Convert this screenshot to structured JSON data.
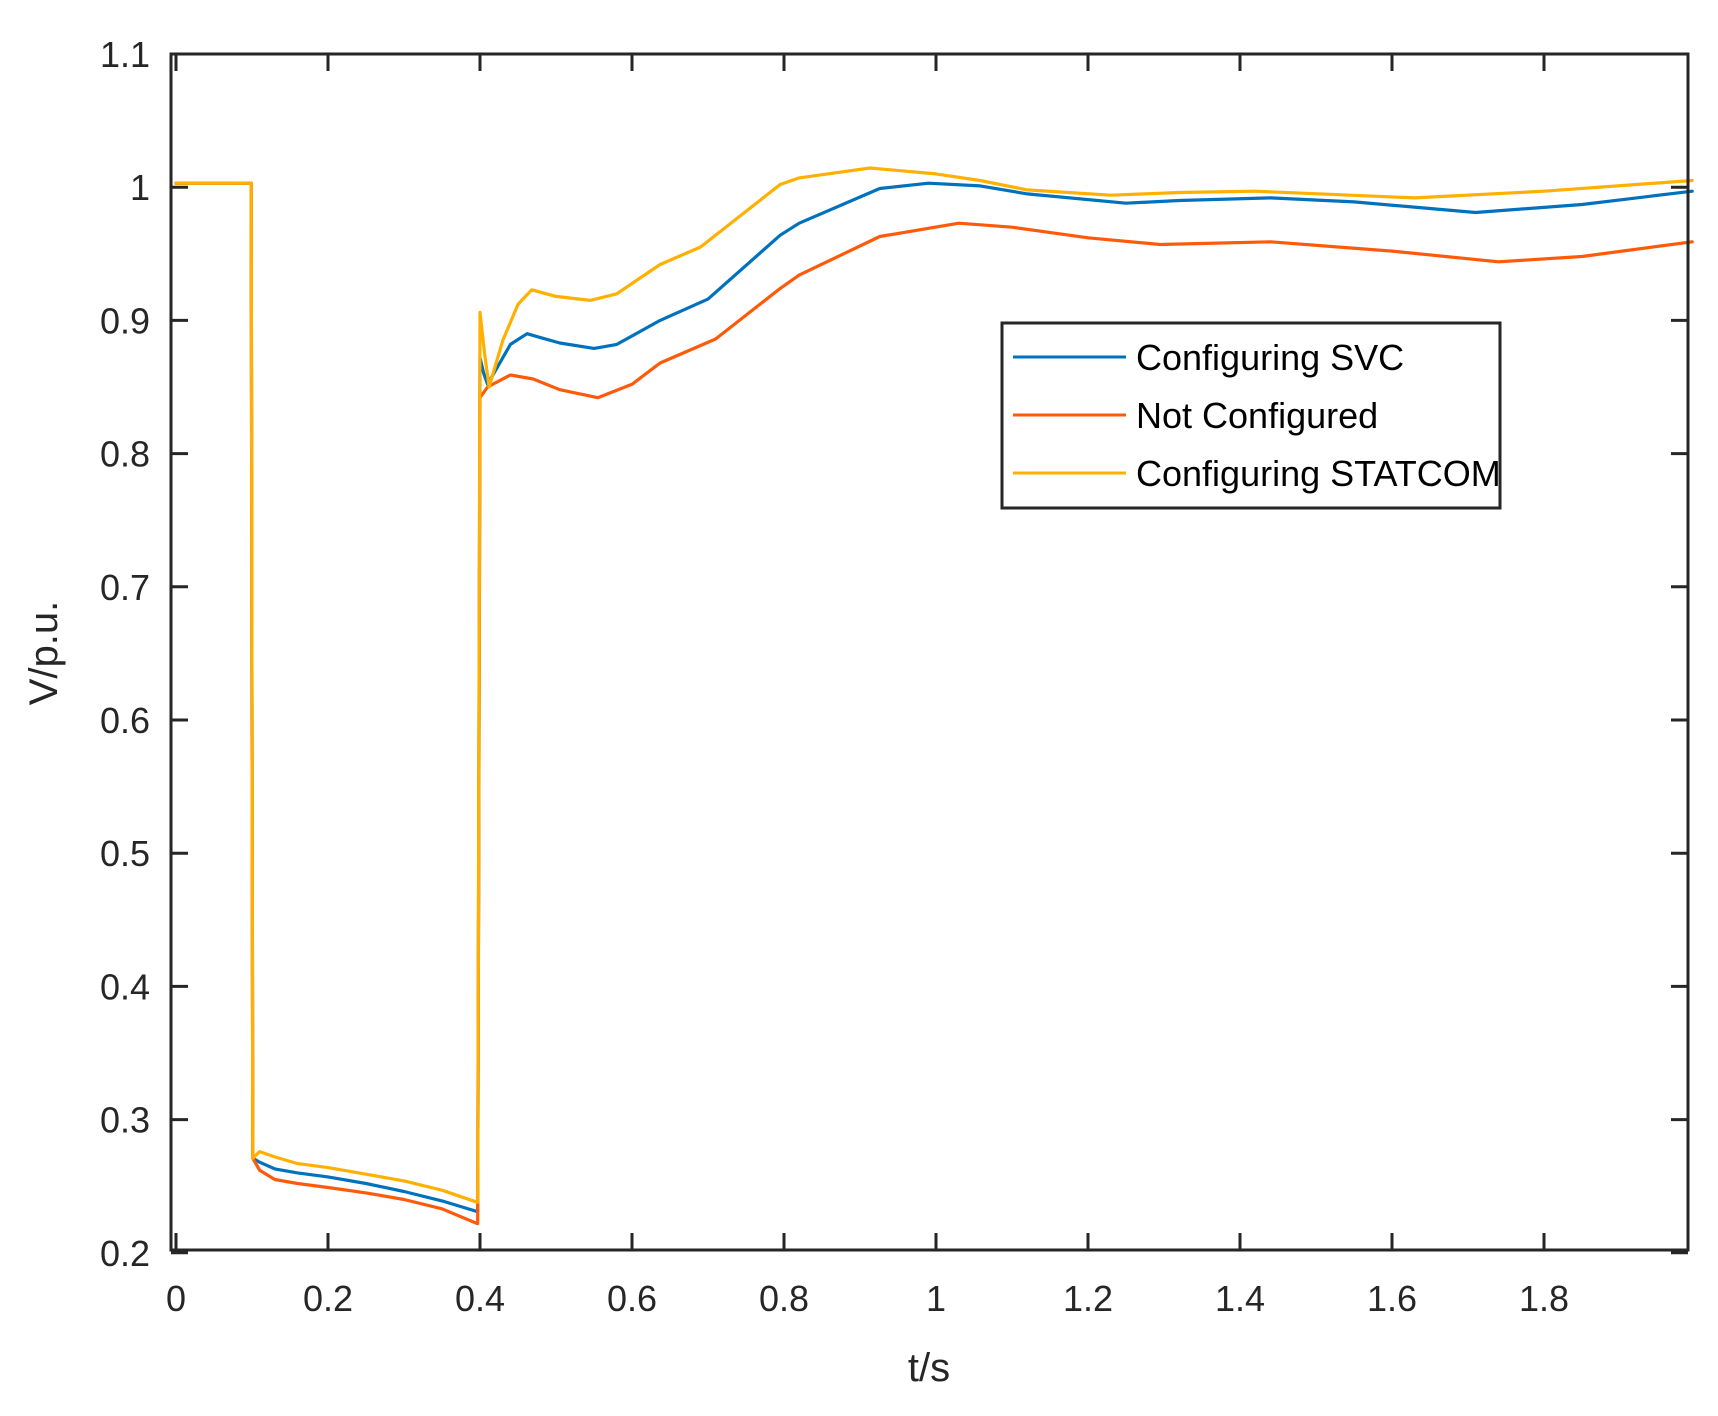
{
  "chart_data": {
    "type": "line",
    "title": "",
    "xlabel": "t/s",
    "ylabel": "V/p.u.",
    "xlim": [
      -0.006,
      1.995
    ],
    "ylim": [
      0.2,
      1.1
    ],
    "xticks": [
      0,
      0.2,
      0.4,
      0.6,
      0.8,
      1,
      1.2,
      1.4,
      1.6,
      1.8
    ],
    "xtick_labels": [
      "0",
      "0.2",
      "0.4",
      "0.6",
      "0.8",
      "1",
      "1.2",
      "1.4",
      "1.6",
      "1.8"
    ],
    "yticks": [
      0.2,
      0.3,
      0.4,
      0.5,
      0.6,
      0.7,
      0.8,
      0.9,
      1.0,
      1.1
    ],
    "ytick_labels": [
      "0.2",
      "0.3",
      "0.4",
      "0.5",
      "0.6",
      "0.7",
      "0.8",
      "0.9",
      "1",
      "1.1"
    ],
    "grid": false,
    "box": true,
    "legend": {
      "position": "upper right (inset, near y=0.85-0.99)",
      "entries": [
        "Configuring SVC",
        "Not Configured",
        "Configuring STATCOM"
      ]
    },
    "series": [
      {
        "name": "Configuring SVC",
        "color": "#0072BD",
        "x": [
          0,
          0.099,
          0.1,
          0.101,
          0.11,
          0.13,
          0.16,
          0.2,
          0.25,
          0.3,
          0.35,
          0.396,
          0.397,
          0.4,
          0.405,
          0.41,
          0.42,
          0.44,
          0.462,
          0.48,
          0.505,
          0.55,
          0.58,
          0.637,
          0.7,
          0.795,
          0.82,
          0.926,
          0.99,
          1.058,
          1.12,
          1.25,
          1.32,
          1.44,
          1.55,
          1.71,
          1.85,
          1.995
        ],
        "values": [
          1.003,
          1.003,
          0.6,
          0.271,
          0.268,
          0.263,
          0.26,
          0.257,
          0.252,
          0.246,
          0.239,
          0.231,
          0.231,
          0.872,
          0.86,
          0.852,
          0.862,
          0.882,
          0.89,
          0.887,
          0.883,
          0.879,
          0.882,
          0.9,
          0.916,
          0.964,
          0.973,
          0.999,
          1.003,
          1.001,
          0.995,
          0.988,
          0.99,
          0.992,
          0.989,
          0.981,
          0.987,
          0.997
        ]
      },
      {
        "name": "Not Configured",
        "color": "#D95319",
        "x": [
          0,
          0.099,
          0.1,
          0.101,
          0.11,
          0.13,
          0.16,
          0.2,
          0.25,
          0.3,
          0.35,
          0.396,
          0.397,
          0.4,
          0.41,
          0.44,
          0.47,
          0.505,
          0.555,
          0.6,
          0.637,
          0.71,
          0.795,
          0.82,
          0.926,
          1.03,
          1.1,
          1.2,
          1.295,
          1.44,
          1.6,
          1.74,
          1.85,
          1.995
        ],
        "values": [
          1.003,
          1.003,
          0.6,
          0.271,
          0.262,
          0.255,
          0.252,
          0.249,
          0.245,
          0.24,
          0.233,
          0.222,
          0.222,
          0.842,
          0.85,
          0.859,
          0.856,
          0.848,
          0.842,
          0.852,
          0.868,
          0.886,
          0.924,
          0.934,
          0.963,
          0.973,
          0.97,
          0.962,
          0.957,
          0.959,
          0.952,
          0.944,
          0.948,
          0.959
        ]
      },
      {
        "name": "Configuring STATCOM",
        "color": "#EDB120",
        "x": [
          0,
          0.099,
          0.1,
          0.101,
          0.11,
          0.13,
          0.16,
          0.2,
          0.25,
          0.3,
          0.35,
          0.396,
          0.397,
          0.4,
          0.406,
          0.412,
          0.43,
          0.45,
          0.468,
          0.5,
          0.545,
          0.58,
          0.637,
          0.69,
          0.795,
          0.82,
          0.913,
          1.0,
          1.058,
          1.12,
          1.23,
          1.32,
          1.42,
          1.63,
          1.8,
          1.995
        ],
        "values": [
          1.003,
          1.003,
          0.6,
          0.271,
          0.276,
          0.272,
          0.267,
          0.264,
          0.259,
          0.254,
          0.247,
          0.238,
          0.238,
          0.906,
          0.875,
          0.85,
          0.885,
          0.912,
          0.923,
          0.918,
          0.915,
          0.92,
          0.942,
          0.955,
          1.002,
          1.007,
          1.0144,
          1.01,
          1.005,
          0.998,
          0.994,
          0.996,
          0.997,
          0.992,
          0.997,
          1.005
        ]
      }
    ]
  },
  "axes": {
    "xlabel": "t/s",
    "ylabel": "V/p.u."
  },
  "legend": {
    "items": [
      {
        "label": "Configuring SVC",
        "color": "#0072BD"
      },
      {
        "label": "Not Configured",
        "color": "#FF5A0A"
      },
      {
        "label": "Configuring STATCOM",
        "color": "#FFB000"
      }
    ]
  },
  "colors": {
    "axis": "#262626",
    "background": "#ffffff",
    "svc": "#0072BD",
    "not_configured": "#FF5A0A",
    "statcom": "#FFB000"
  }
}
